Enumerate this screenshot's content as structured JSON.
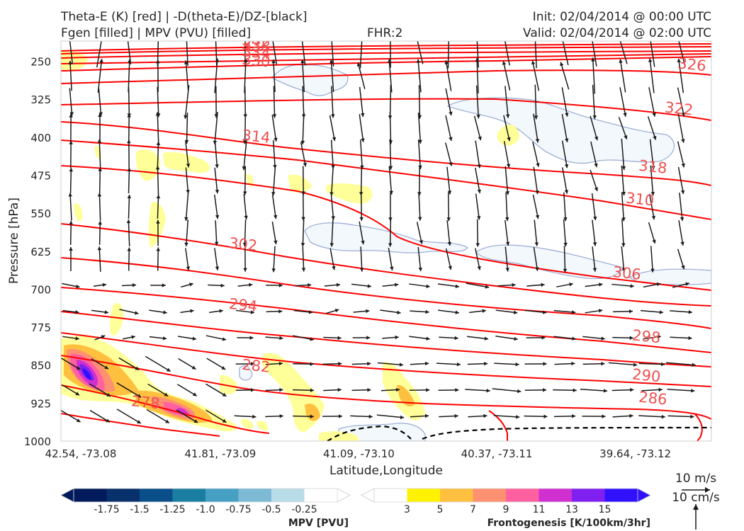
{
  "header": {
    "title_left_line1": "Theta-E (K) [red] | -D(theta-E)/DZ-[black]",
    "title_left_line2": "Fgen [filled] | MPV (PVU) [filled]",
    "title_center": "FHR:2",
    "title_right_line1": "Init: 02/04/2014 @ 00:00 UTC",
    "title_right_line2": "Valid: 02/04/2014 @ 02:00 UTC"
  },
  "chart_data": {
    "type": "contour",
    "xlabel": "Latitude,Longitude",
    "ylabel": "Pressure [hPa]",
    "x_ticks": [
      "42.54, -73.08",
      "41.81, -73.09",
      "41.09, -73.10",
      "40.37, -73.11",
      "39.64, -73.12"
    ],
    "y_ticks": [
      250,
      325,
      400,
      475,
      550,
      625,
      700,
      775,
      850,
      925,
      1000
    ],
    "ylim": [
      1000,
      210
    ],
    "theta_e_color": "#ff0000",
    "theta_e_labels": [
      {
        "value": 342,
        "x": 0.3,
        "p": 212
      },
      {
        "value": 338,
        "x": 0.3,
        "p": 220
      },
      {
        "value": 334,
        "x": 0.3,
        "p": 234
      },
      {
        "value": 330,
        "x": 0.3,
        "p": 250
      },
      {
        "value": 326,
        "x": 0.97,
        "p": 258
      },
      {
        "value": 322,
        "x": 0.95,
        "p": 345
      },
      {
        "value": 318,
        "x": 0.91,
        "p": 460
      },
      {
        "value": 314,
        "x": 0.3,
        "p": 400
      },
      {
        "value": 310,
        "x": 0.89,
        "p": 524
      },
      {
        "value": 306,
        "x": 0.87,
        "p": 670
      },
      {
        "value": 302,
        "x": 0.28,
        "p": 613
      },
      {
        "value": 298,
        "x": 0.9,
        "p": 795
      },
      {
        "value": 294,
        "x": 0.28,
        "p": 733
      },
      {
        "value": 290,
        "x": 0.9,
        "p": 872
      },
      {
        "value": 286,
        "x": 0.91,
        "p": 917
      },
      {
        "value": 282,
        "x": 0.3,
        "p": 853
      },
      {
        "value": 278,
        "x": 0.13,
        "p": 925
      }
    ],
    "mpv_colorbar": {
      "label": "MPV [PVU]",
      "ticks": [
        "-1.75",
        "-1.5",
        "-1.25",
        "-1.0",
        "-0.75",
        "-0.5",
        "-0.25"
      ],
      "colors": [
        "#001a5c",
        "#08306b",
        "#0a4f8a",
        "#1a7ea0",
        "#45a0c4",
        "#7dbad6",
        "#b8dce8",
        "#ffffff"
      ]
    },
    "fgen_colorbar": {
      "label": "Frontogenesis [K/100km/3hr]",
      "ticks": [
        "3",
        "5",
        "7",
        "9",
        "11",
        "13",
        "15"
      ],
      "colors": [
        "#ffffff",
        "#fff200",
        "#ffc040",
        "#ff9070",
        "#ff60a0",
        "#d030d0",
        "#8020f0",
        "#3010ff"
      ]
    },
    "vector_key": {
      "horizontal": "10 m/s",
      "vertical": "10 cm/s"
    }
  }
}
